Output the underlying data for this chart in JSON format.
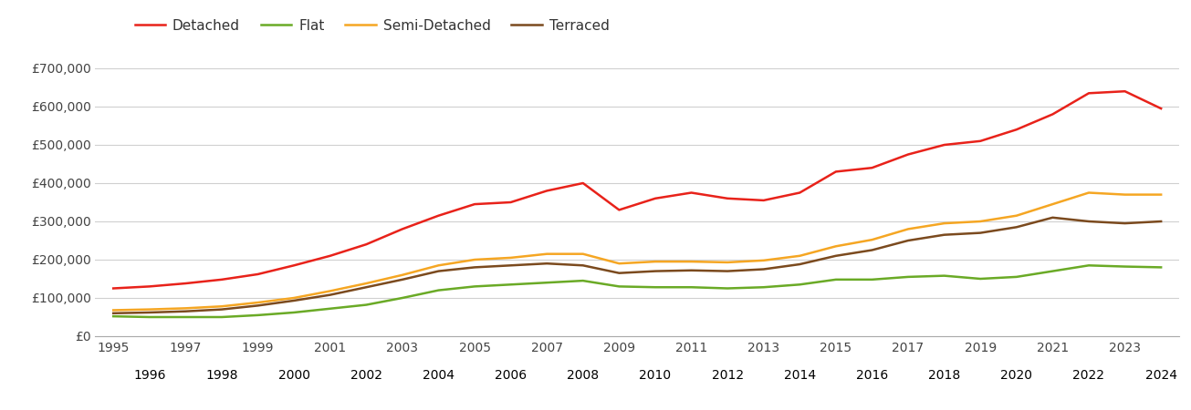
{
  "years": [
    1995,
    1996,
    1997,
    1998,
    1999,
    2000,
    2001,
    2002,
    2003,
    2004,
    2005,
    2006,
    2007,
    2008,
    2009,
    2010,
    2011,
    2012,
    2013,
    2014,
    2015,
    2016,
    2017,
    2018,
    2019,
    2020,
    2021,
    2022,
    2023,
    2024
  ],
  "detached": [
    125000,
    130000,
    138000,
    148000,
    162000,
    185000,
    210000,
    240000,
    280000,
    315000,
    345000,
    350000,
    380000,
    400000,
    330000,
    360000,
    375000,
    360000,
    355000,
    375000,
    430000,
    440000,
    475000,
    500000,
    510000,
    540000,
    580000,
    635000,
    640000,
    595000
  ],
  "flat": [
    52000,
    50000,
    50000,
    50000,
    55000,
    62000,
    72000,
    82000,
    100000,
    120000,
    130000,
    135000,
    140000,
    145000,
    130000,
    128000,
    128000,
    125000,
    128000,
    135000,
    148000,
    148000,
    155000,
    158000,
    150000,
    155000,
    170000,
    185000,
    182000,
    180000
  ],
  "semi_detached": [
    68000,
    70000,
    73000,
    78000,
    88000,
    100000,
    118000,
    138000,
    160000,
    185000,
    200000,
    205000,
    215000,
    215000,
    190000,
    195000,
    195000,
    193000,
    198000,
    210000,
    235000,
    252000,
    280000,
    295000,
    300000,
    315000,
    345000,
    375000,
    370000,
    370000
  ],
  "terraced": [
    60000,
    62000,
    65000,
    70000,
    80000,
    93000,
    108000,
    128000,
    148000,
    170000,
    180000,
    185000,
    190000,
    185000,
    165000,
    170000,
    172000,
    170000,
    175000,
    188000,
    210000,
    225000,
    250000,
    265000,
    270000,
    285000,
    310000,
    300000,
    295000,
    300000
  ],
  "colors": {
    "detached": "#e8221a",
    "flat": "#6aaa26",
    "semi_detached": "#f5a623",
    "terraced": "#7b4a1e"
  },
  "ylim": [
    0,
    750000
  ],
  "yticks": [
    0,
    100000,
    200000,
    300000,
    400000,
    500000,
    600000,
    700000
  ],
  "ytick_labels": [
    "£0",
    "£100,000",
    "£200,000",
    "£300,000",
    "£400,000",
    "£500,000",
    "£600,000",
    "£700,000"
  ],
  "legend_labels": [
    "Detached",
    "Flat",
    "Semi-Detached",
    "Terraced"
  ],
  "background_color": "#ffffff",
  "grid_color": "#d0d0d0",
  "line_width": 1.8
}
